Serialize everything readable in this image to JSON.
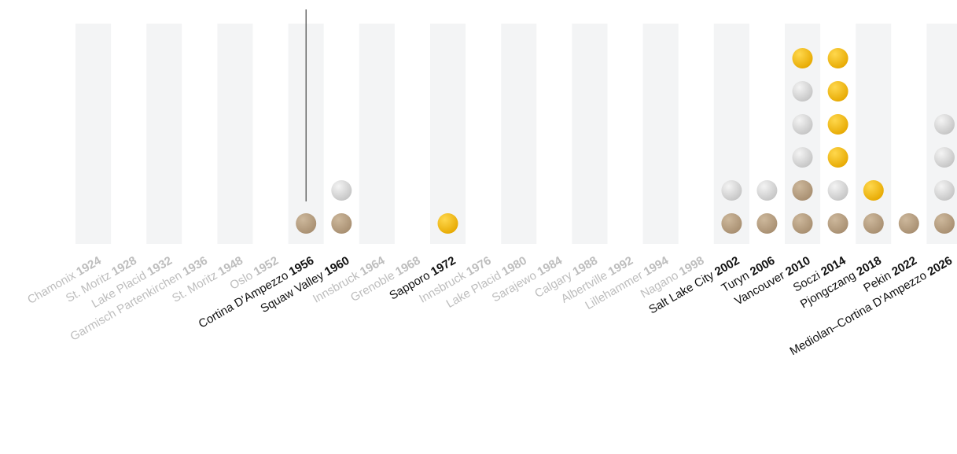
{
  "chart_data": {
    "type": "dot-matrix",
    "title": "",
    "xlabel": "",
    "ylabel": "",
    "colors": {
      "gold": "#f0b400",
      "silver": "#d4d4d4",
      "bronze": "#b59e80",
      "band": "#f3f4f5",
      "label_active": "#111111",
      "label_inactive": "#bdbdbd",
      "marker_line": "#444444"
    },
    "games": [
      {
        "city": "Chamonix",
        "year": "1924",
        "medals": []
      },
      {
        "city": "St. Moritz",
        "year": "1928",
        "medals": []
      },
      {
        "city": "Lake Placid",
        "year": "1932",
        "medals": []
      },
      {
        "city": "Garmisch Partenkirchen",
        "year": "1936",
        "medals": []
      },
      {
        "city": "St. Moritz",
        "year": "1948",
        "medals": []
      },
      {
        "city": "Oslo",
        "year": "1952",
        "medals": []
      },
      {
        "city": "Cortina D'Ampezzo",
        "year": "1956",
        "medals": [
          "bronze"
        ],
        "marker": true
      },
      {
        "city": "Squaw Valley",
        "year": "1960",
        "medals": [
          "bronze",
          "silver"
        ]
      },
      {
        "city": "Innsbruck",
        "year": "1964",
        "medals": []
      },
      {
        "city": "Grenoble",
        "year": "1968",
        "medals": []
      },
      {
        "city": "Sapporo",
        "year": "1972",
        "medals": [
          "gold"
        ]
      },
      {
        "city": "Innsbruck",
        "year": "1976",
        "medals": []
      },
      {
        "city": "Lake Placid",
        "year": "1980",
        "medals": []
      },
      {
        "city": "Sarajewo",
        "year": "1984",
        "medals": []
      },
      {
        "city": "Calgary",
        "year": "1988",
        "medals": []
      },
      {
        "city": "Albertville",
        "year": "1992",
        "medals": []
      },
      {
        "city": "Lillehammer",
        "year": "1994",
        "medals": []
      },
      {
        "city": "Nagano",
        "year": "1998",
        "medals": []
      },
      {
        "city": "Salt Lake City",
        "year": "2002",
        "medals": [
          "bronze",
          "silver"
        ]
      },
      {
        "city": "Turyn",
        "year": "2006",
        "medals": [
          "bronze",
          "silver"
        ]
      },
      {
        "city": "Vancouver",
        "year": "2010",
        "medals": [
          "bronze",
          "bronze",
          "silver",
          "silver",
          "silver",
          "gold"
        ]
      },
      {
        "city": "Soczi",
        "year": "2014",
        "medals": [
          "bronze",
          "silver",
          "gold",
          "gold",
          "gold",
          "gold"
        ]
      },
      {
        "city": "Pjongczang",
        "year": "2018",
        "medals": [
          "bronze",
          "gold"
        ]
      },
      {
        "city": "Pekin",
        "year": "2022",
        "medals": [
          "bronze"
        ]
      },
      {
        "city": "Mediolan–Cortina D'Ampezzo",
        "year": "2026",
        "medals": [
          "bronze",
          "silver",
          "silver",
          "silver"
        ]
      }
    ]
  }
}
